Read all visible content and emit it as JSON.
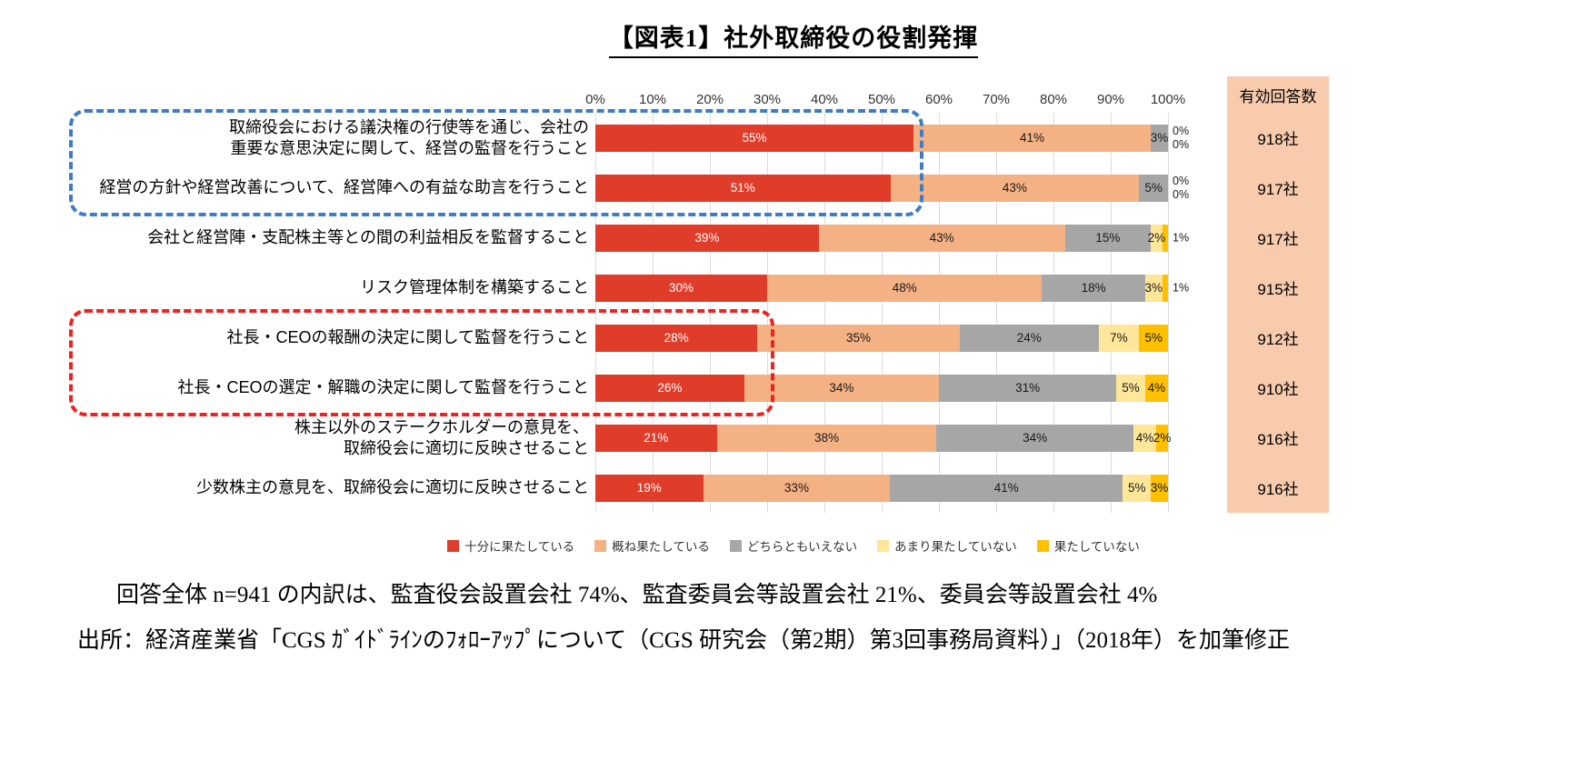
{
  "title": "【図表1】社外取締役の役割発揮",
  "chart_data": {
    "type": "bar",
    "orientation": "horizontal",
    "stacked": true,
    "unit": "%",
    "x_ticks": [
      "0%",
      "10%",
      "20%",
      "30%",
      "40%",
      "50%",
      "60%",
      "70%",
      "80%",
      "90%",
      "100%"
    ],
    "xlim": [
      0,
      100
    ],
    "grid": true,
    "legend_position": "bottom",
    "series": [
      {
        "name": "十分に果たしている",
        "color": "#e03c2a",
        "values": [
          55,
          51,
          39,
          30,
          28,
          26,
          21,
          19
        ]
      },
      {
        "name": "概ね果たしている",
        "color": "#f4b183",
        "values": [
          41,
          43,
          43,
          48,
          35,
          34,
          38,
          33
        ]
      },
      {
        "name": "どちらともいえない",
        "color": "#a6a6a6",
        "values": [
          3,
          5,
          15,
          18,
          24,
          31,
          34,
          41
        ]
      },
      {
        "name": "あまり果たしていない",
        "color": "#ffe699",
        "values": [
          0,
          0,
          2,
          3,
          7,
          5,
          4,
          5
        ]
      },
      {
        "name": "果たしていない",
        "color": "#ffc000",
        "values": [
          0,
          0,
          1,
          1,
          5,
          4,
          2,
          3
        ]
      }
    ],
    "categories_lines": [
      [
        "取締役会における議決権の行使等を通じ、会社の",
        "重要な意思決定に関して、経営の監督を行うこと"
      ],
      [
        "経営の方針や経営改善について、経営陣への有益な助言を行うこと"
      ],
      [
        "会社と経営陣・支配株主等との間の利益相反を監督すること"
      ],
      [
        "リスク管理体制を構築すること"
      ],
      [
        "社長・CEOの報酬の決定に関して監督を行うこと"
      ],
      [
        "社長・CEOの選定・解職の決定に関して監督を行うこと"
      ],
      [
        "株主以外のステークホルダーの意見を、",
        "取締役会に適切に反映させること"
      ],
      [
        "少数株主の意見を、取締役会に適切に反映させること"
      ]
    ],
    "valid_responses": {
      "header": "有効回答数",
      "bg_color": "#f8cbad",
      "values": [
        "918社",
        "917社",
        "917社",
        "915社",
        "912社",
        "910社",
        "916社",
        "916社"
      ]
    }
  },
  "annotations": {
    "blue_box_color": "#3e7cc6",
    "red_box_color": "#ee2222"
  },
  "notes": {
    "breakdown": "回答全体 n=941 の内訳は、監査役会設置会社 74%、監査委員会等設置会社 21%、委員会等設置会社 4%",
    "source": "出所：経済産業省「CGS ｶﾞｲﾄﾞﾗｲﾝのﾌｫﾛｰｱｯﾌﾟについて（CGS 研究会（第2期）第3回事務局資料）」（2018年）を加筆修正"
  }
}
